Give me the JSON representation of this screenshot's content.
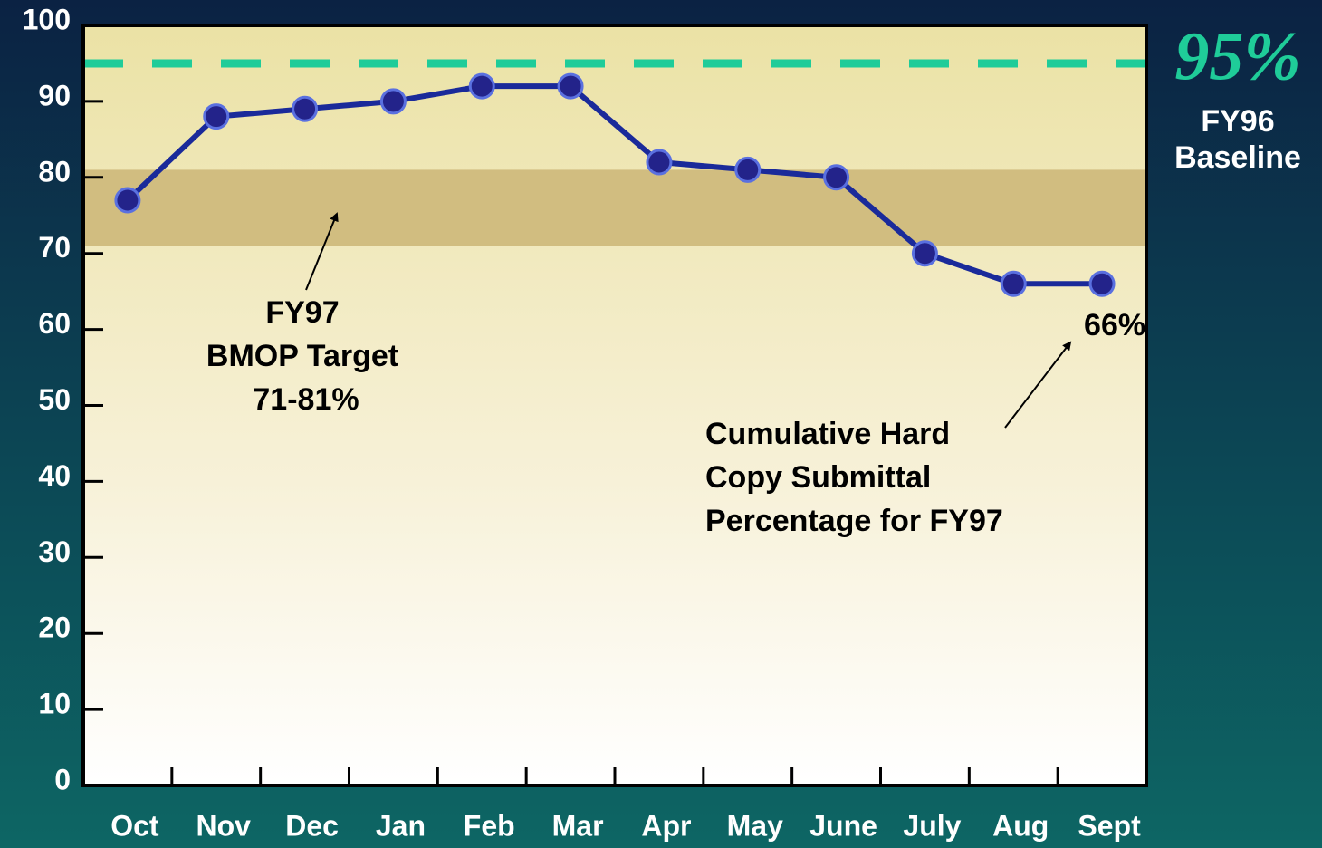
{
  "chart_data": {
    "type": "line",
    "categories": [
      "Oct",
      "Nov",
      "Dec",
      "Jan",
      "Feb",
      "Mar",
      "Apr",
      "May",
      "June",
      "July",
      "Aug",
      "Sept"
    ],
    "series": [
      {
        "name": "Cumulative Hard Copy Submittal Percentage for FY97",
        "color": "#1a2a9a",
        "values": [
          77,
          88,
          89,
          90,
          92,
          92,
          82,
          81,
          80,
          70,
          66,
          66
        ],
        "value_labels": [
          null,
          null,
          null,
          null,
          null,
          null,
          null,
          null,
          null,
          null,
          null,
          "66%"
        ]
      }
    ],
    "ylim": [
      0,
      100
    ],
    "yticks": [
      0,
      10,
      20,
      30,
      40,
      50,
      60,
      70,
      80,
      90,
      100
    ],
    "target_band": {
      "range": [
        71,
        81
      ],
      "color": "#d1bd80",
      "label": [
        "FY97",
        "BMOP Target",
        "71-81%"
      ]
    },
    "baseline": {
      "value": 95,
      "color": "#1fcc99",
      "label": "95%",
      "caption": [
        "FY96",
        "Baseline"
      ]
    },
    "series_annotation": [
      "Cumulative Hard",
      "Copy Submittal",
      "Percentage for FY97"
    ]
  }
}
